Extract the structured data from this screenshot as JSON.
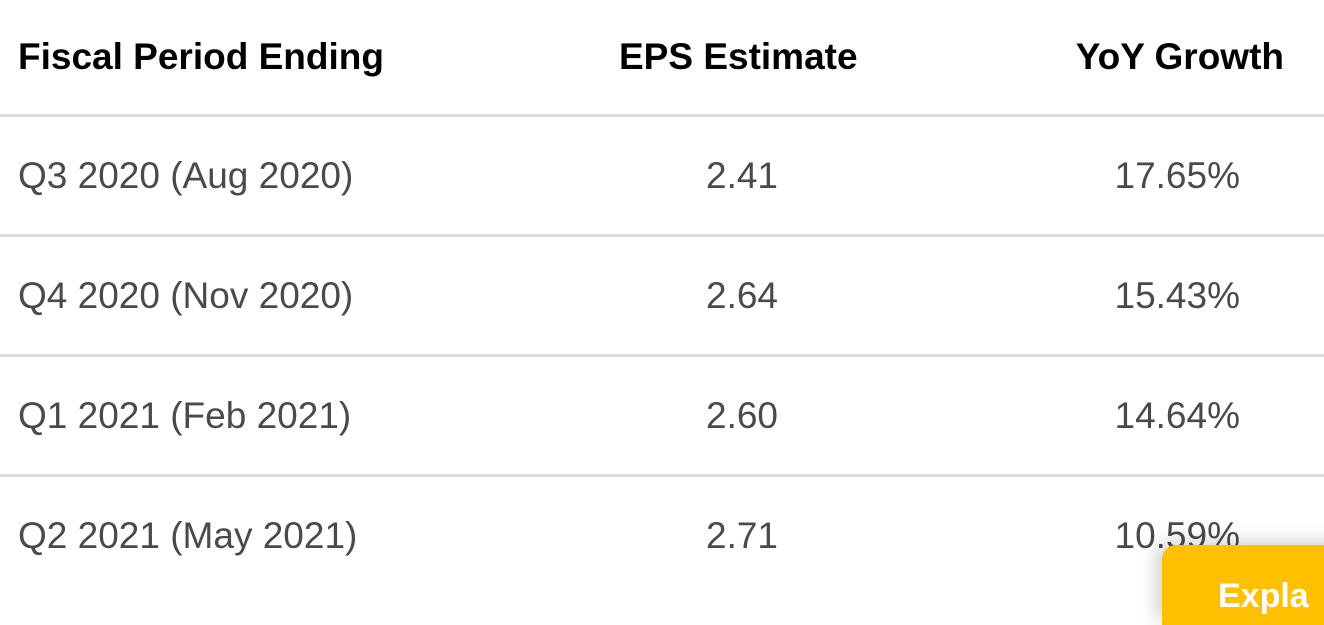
{
  "table": {
    "headers": {
      "period": "Fiscal Period Ending",
      "eps": "EPS Estimate",
      "growth": "YoY Growth"
    },
    "rows": [
      {
        "period": "Q3 2020 (Aug 2020)",
        "eps": "2.41",
        "growth": "17.65%"
      },
      {
        "period": "Q4 2020 (Nov 2020)",
        "eps": "2.64",
        "growth": "15.43%"
      },
      {
        "period": "Q1 2021 (Feb 2021)",
        "eps": "2.60",
        "growth": "14.64%"
      },
      {
        "period": "Q2 2021 (May 2021)",
        "eps": "2.71",
        "growth": "10.59%"
      }
    ]
  },
  "cta": {
    "label": "Expla",
    "color": "#ffc000"
  },
  "colors": {
    "header_text": "#000000",
    "body_text": "#4a4a4a",
    "divider": "#dcdcdc"
  }
}
